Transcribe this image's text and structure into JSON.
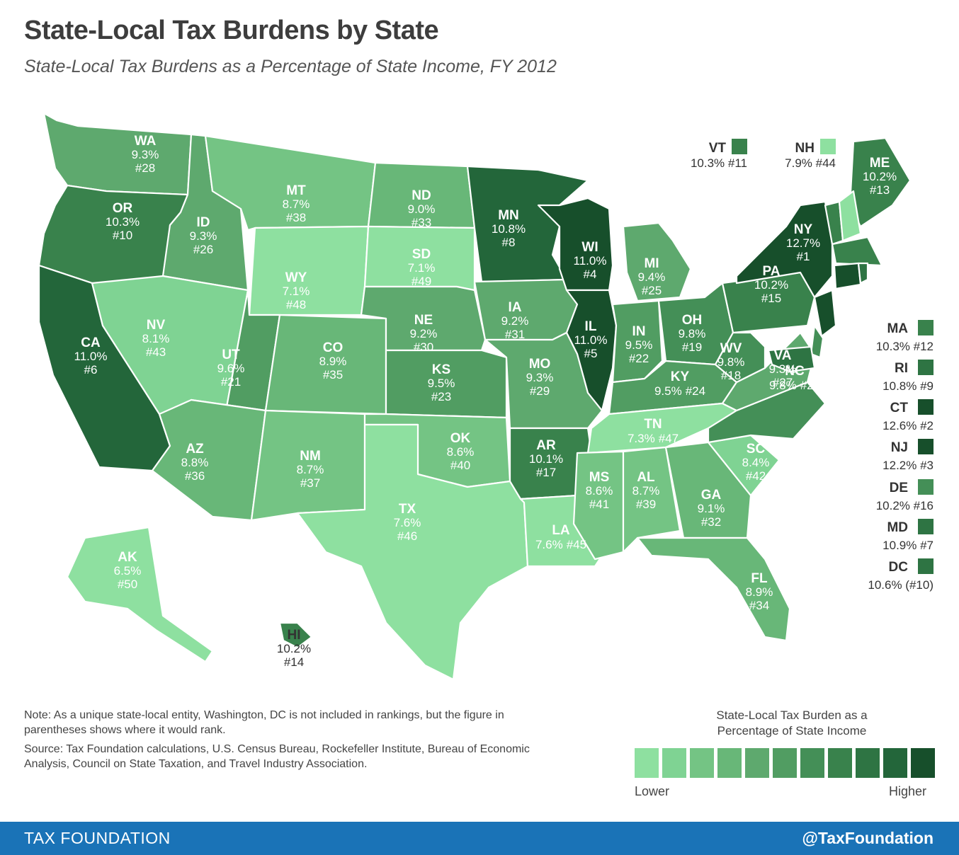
{
  "title": "State-Local Tax Burdens by State",
  "subtitle": "State-Local Tax Burdens as a Percentage of State Income, FY 2012",
  "palette": [
    "#8ee0a0",
    "#7fd393",
    "#74c484",
    "#68b778",
    "#5ea96e",
    "#519d62",
    "#448f57",
    "#39824c",
    "#2e7443",
    "#23663a",
    "#174f2b"
  ],
  "states": [
    {
      "abbr": "WA",
      "rate": "9.3%",
      "rank": "#28",
      "level": 4
    },
    {
      "abbr": "OR",
      "rate": "10.3%",
      "rank": "#10",
      "level": 7
    },
    {
      "abbr": "CA",
      "rate": "11.0%",
      "rank": "#6",
      "level": 9
    },
    {
      "abbr": "ID",
      "rate": "9.3%",
      "rank": "#26",
      "level": 4
    },
    {
      "abbr": "NV",
      "rate": "8.1%",
      "rank": "#43",
      "level": 1
    },
    {
      "abbr": "MT",
      "rate": "8.7%",
      "rank": "#38",
      "level": 2
    },
    {
      "abbr": "WY",
      "rate": "7.1%",
      "rank": "#48",
      "level": 0
    },
    {
      "abbr": "UT",
      "rate": "9.6%",
      "rank": "#21",
      "level": 5
    },
    {
      "abbr": "AZ",
      "rate": "8.8%",
      "rank": "#36",
      "level": 3
    },
    {
      "abbr": "CO",
      "rate": "8.9%",
      "rank": "#35",
      "level": 3
    },
    {
      "abbr": "NM",
      "rate": "8.7%",
      "rank": "#37",
      "level": 2
    },
    {
      "abbr": "ND",
      "rate": "9.0%",
      "rank": "#33",
      "level": 3
    },
    {
      "abbr": "SD",
      "rate": "7.1%",
      "rank": "#49",
      "level": 0
    },
    {
      "abbr": "NE",
      "rate": "9.2%",
      "rank": "#30",
      "level": 4
    },
    {
      "abbr": "KS",
      "rate": "9.5%",
      "rank": "#23",
      "level": 5
    },
    {
      "abbr": "OK",
      "rate": "8.6%",
      "rank": "#40",
      "level": 2
    },
    {
      "abbr": "TX",
      "rate": "7.6%",
      "rank": "#46",
      "level": 0
    },
    {
      "abbr": "MN",
      "rate": "10.8%",
      "rank": "#8",
      "level": 9
    },
    {
      "abbr": "IA",
      "rate": "9.2%",
      "rank": "#31",
      "level": 4
    },
    {
      "abbr": "MO",
      "rate": "9.3%",
      "rank": "#29",
      "level": 4
    },
    {
      "abbr": "AR",
      "rate": "10.1%",
      "rank": "#17",
      "level": 7
    },
    {
      "abbr": "LA",
      "rate": "7.6%",
      "rank": "#45",
      "level": 0
    },
    {
      "abbr": "WI",
      "rate": "11.0%",
      "rank": "#4",
      "level": 10
    },
    {
      "abbr": "IL",
      "rate": "11.0%",
      "rank": "#5",
      "level": 10
    },
    {
      "abbr": "MI",
      "rate": "9.4%",
      "rank": "#25",
      "level": 4
    },
    {
      "abbr": "IN",
      "rate": "9.5%",
      "rank": "#22",
      "level": 5
    },
    {
      "abbr": "OH",
      "rate": "9.8%",
      "rank": "#19",
      "level": 6
    },
    {
      "abbr": "KY",
      "rate": "9.5%",
      "rank": "#24",
      "level": 5
    },
    {
      "abbr": "TN",
      "rate": "7.3%",
      "rank": "#47",
      "level": 0
    },
    {
      "abbr": "MS",
      "rate": "8.6%",
      "rank": "#41",
      "level": 2
    },
    {
      "abbr": "AL",
      "rate": "8.7%",
      "rank": "#39",
      "level": 2
    },
    {
      "abbr": "GA",
      "rate": "9.1%",
      "rank": "#32",
      "level": 3
    },
    {
      "abbr": "FL",
      "rate": "8.9%",
      "rank": "#34",
      "level": 3
    },
    {
      "abbr": "SC",
      "rate": "8.4%",
      "rank": "#42",
      "level": 1
    },
    {
      "abbr": "NC",
      "rate": "9.8%",
      "rank": "#20",
      "level": 6
    },
    {
      "abbr": "VA",
      "rate": "9.3%",
      "rank": "#27",
      "level": 4
    },
    {
      "abbr": "WV",
      "rate": "9.8%",
      "rank": "#18",
      "level": 6
    },
    {
      "abbr": "PA",
      "rate": "10.2%",
      "rank": "#15",
      "level": 7
    },
    {
      "abbr": "NY",
      "rate": "12.7%",
      "rank": "#1",
      "level": 10
    },
    {
      "abbr": "ME",
      "rate": "10.2%",
      "rank": "#13",
      "level": 7
    },
    {
      "abbr": "AK",
      "rate": "6.5%",
      "rank": "#50",
      "level": 0
    },
    {
      "abbr": "HI",
      "rate": "10.2%",
      "rank": "#14",
      "level": 7
    }
  ],
  "inset_states": [
    {
      "abbr": "VT",
      "value": "10.3% #11",
      "level": 7
    },
    {
      "abbr": "NH",
      "value": "7.9% #44",
      "level": 0
    }
  ],
  "side_states": [
    {
      "abbr": "MA",
      "value": "10.3% #12",
      "level": 7
    },
    {
      "abbr": "RI",
      "value": "10.8% #9",
      "level": 8
    },
    {
      "abbr": "CT",
      "value": "12.6% #2",
      "level": 10
    },
    {
      "abbr": "NJ",
      "value": "12.2% #3",
      "level": 10
    },
    {
      "abbr": "DE",
      "value": "10.2% #16",
      "level": 6
    },
    {
      "abbr": "MD",
      "value": "10.9% #7",
      "level": 8
    },
    {
      "abbr": "DC",
      "value": "10.6% (#10)",
      "level": 8
    }
  ],
  "note": "Note: As a unique state-local entity, Washington, DC is not included in rankings, but the figure in parentheses shows where it would rank.",
  "source": "Source: Tax Foundation calculations, U.S. Census Bureau, Rockefeller Institute, Bureau of Economic Analysis, Council on State Taxation, and Travel Industry Association.",
  "legend": {
    "title_line1": "State-Local Tax Burden as a",
    "title_line2": "Percentage of State Income",
    "low": "Lower",
    "high": "Higher"
  },
  "footer": {
    "org": "TAX FOUNDATION",
    "handle": "@TaxFoundation"
  }
}
